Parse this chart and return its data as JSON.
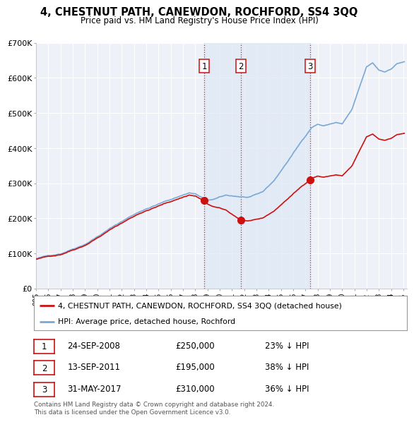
{
  "title": "4, CHESTNUT PATH, CANEWDON, ROCHFORD, SS4 3QQ",
  "subtitle": "Price paid vs. HM Land Registry's House Price Index (HPI)",
  "background_color": "#ffffff",
  "plot_bg_color": "#eef2f8",
  "grid_color": "#ffffff",
  "hpi_color": "#7aa8d4",
  "price_color": "#cc1111",
  "shade_color": "#dde8f5",
  "purchases": [
    {
      "date_num": 2008.73,
      "price": 250000,
      "label": "1",
      "date_str": "24-SEP-2008"
    },
    {
      "date_num": 2011.71,
      "price": 195000,
      "label": "2",
      "date_str": "13-SEP-2011"
    },
    {
      "date_num": 2017.41,
      "price": 310000,
      "label": "3",
      "date_str": "31-MAY-2017"
    }
  ],
  "xmin": 1995.0,
  "xmax": 2025.3,
  "ymin": 0,
  "ymax": 700000,
  "yticks": [
    0,
    100000,
    200000,
    300000,
    400000,
    500000,
    600000,
    700000
  ],
  "ytick_labels": [
    "£0",
    "£100K",
    "£200K",
    "£300K",
    "£400K",
    "£500K",
    "£600K",
    "£700K"
  ],
  "xticks": [
    1995,
    1996,
    1997,
    1998,
    1999,
    2000,
    2001,
    2002,
    2003,
    2004,
    2005,
    2006,
    2007,
    2008,
    2009,
    2010,
    2011,
    2012,
    2013,
    2014,
    2015,
    2016,
    2017,
    2018,
    2019,
    2020,
    2021,
    2022,
    2023,
    2024,
    2025
  ],
  "xtick_labels": [
    "995",
    "996",
    "997",
    "998",
    "999",
    "000",
    "001",
    "002",
    "003",
    "004",
    "005",
    "006",
    "007",
    "008",
    "009",
    "010",
    "011",
    "012",
    "013",
    "014",
    "015",
    "016",
    "017",
    "018",
    "019",
    "020",
    "021",
    "022",
    "023",
    "024",
    "025"
  ],
  "legend_property_label": "4, CHESTNUT PATH, CANEWDON, ROCHFORD, SS4 3QQ (detached house)",
  "legend_hpi_label": "HPI: Average price, detached house, Rochford",
  "footer_line1": "Contains HM Land Registry data © Crown copyright and database right 2024.",
  "footer_line2": "This data is licensed under the Open Government Licence v3.0.",
  "table_rows": [
    {
      "num": "1",
      "date": "24-SEP-2008",
      "price": "£250,000",
      "pct": "23% ↓ HPI"
    },
    {
      "num": "2",
      "date": "13-SEP-2011",
      "price": "£195,000",
      "pct": "38% ↓ HPI"
    },
    {
      "num": "3",
      "date": "31-MAY-2017",
      "price": "£310,000",
      "pct": "36% ↓ HPI"
    }
  ]
}
